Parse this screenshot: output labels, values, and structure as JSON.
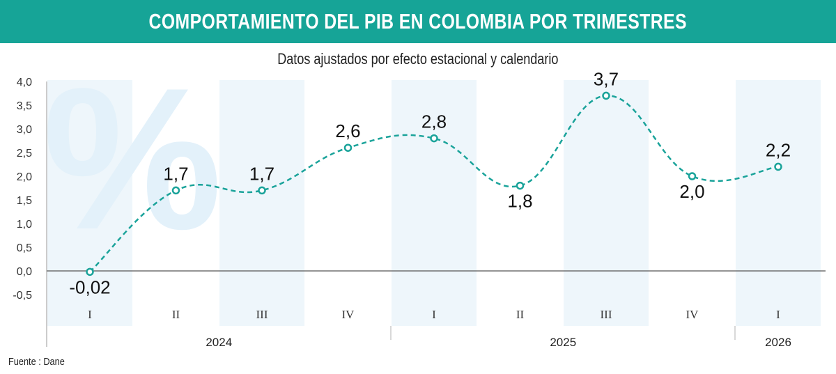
{
  "header": {
    "title": "COMPORTAMIENTO DEL PIB EN COLOMBIA POR TRIMESTRES",
    "subtitle": "Datos ajustados por efecto estacional y calendario"
  },
  "source": "Fuente : Dane",
  "colors": {
    "banner": "#16a497",
    "line": "#1aa39a",
    "band": "#eef6fb",
    "watermark": "#e3f1fa"
  },
  "watermark_symbol": "%",
  "chart_data": {
    "type": "line",
    "title": "",
    "xlabel": "",
    "ylabel": "",
    "categories": [
      "I",
      "II",
      "III",
      "IV",
      "I",
      "II",
      "III",
      "IV",
      "I"
    ],
    "years": [
      {
        "label": "2024",
        "quarters": 4
      },
      {
        "label": "2025",
        "quarters": 4
      },
      {
        "label": "2026",
        "quarters": 1
      }
    ],
    "values": [
      -0.02,
      1.7,
      1.7,
      2.6,
      2.8,
      1.8,
      3.7,
      2.0,
      2.2
    ],
    "value_labels": [
      "-0,02",
      "1,7",
      "1,7",
      "2,6",
      "2,8",
      "1,8",
      "3,7",
      "2,0",
      "2,2"
    ],
    "yticks": [
      "4,0",
      "3,5",
      "3,0",
      "2,5",
      "2,0",
      "1,5",
      "1,0",
      "0,5",
      "0,0",
      "-0,5"
    ],
    "ylim": [
      -0.5,
      4.0
    ],
    "grid": false,
    "legend": "none"
  }
}
